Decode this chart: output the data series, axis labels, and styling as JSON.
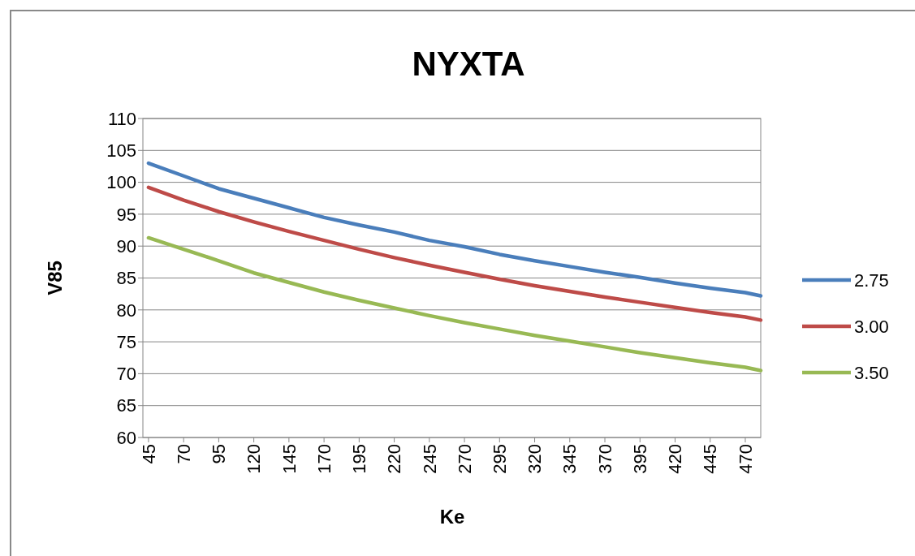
{
  "chart_data": {
    "type": "line",
    "title": "NYXTA",
    "xlabel": "Ke",
    "ylabel": "V85",
    "x": [
      45,
      70,
      95,
      120,
      145,
      170,
      195,
      220,
      245,
      270,
      295,
      320,
      345,
      370,
      395,
      420,
      445,
      470,
      481
    ],
    "xlim": [
      41,
      481
    ],
    "xticks": [
      45,
      70,
      95,
      120,
      145,
      170,
      195,
      220,
      245,
      270,
      295,
      320,
      345,
      370,
      395,
      420,
      445,
      470
    ],
    "ylim": [
      60,
      110
    ],
    "yticks": [
      60,
      65,
      70,
      75,
      80,
      85,
      90,
      95,
      100,
      105,
      110
    ],
    "grid": "y",
    "legend": "right",
    "marker": "none",
    "line_style": "solid",
    "series": [
      {
        "name": "2.75",
        "color": "#4a7ebb",
        "values": [
          103,
          101,
          99,
          97.5,
          96,
          94.5,
          93.3,
          92.2,
          90.9,
          89.9,
          88.7,
          87.7,
          86.8,
          85.9,
          85.1,
          84.2,
          83.4,
          82.7,
          82.2
        ]
      },
      {
        "name": "3.00",
        "color": "#be4b48",
        "values": [
          99.2,
          97.2,
          95.4,
          93.8,
          92.3,
          90.9,
          89.5,
          88.2,
          87,
          85.9,
          84.8,
          83.8,
          82.9,
          82,
          81.2,
          80.4,
          79.6,
          78.9,
          78.4
        ]
      },
      {
        "name": "3.50",
        "color": "#98b954",
        "values": [
          91.3,
          89.5,
          87.7,
          85.8,
          84.3,
          82.8,
          81.5,
          80.3,
          79.1,
          78,
          77,
          76,
          75.1,
          74.2,
          73.3,
          72.5,
          71.7,
          71,
          70.5
        ]
      }
    ]
  }
}
